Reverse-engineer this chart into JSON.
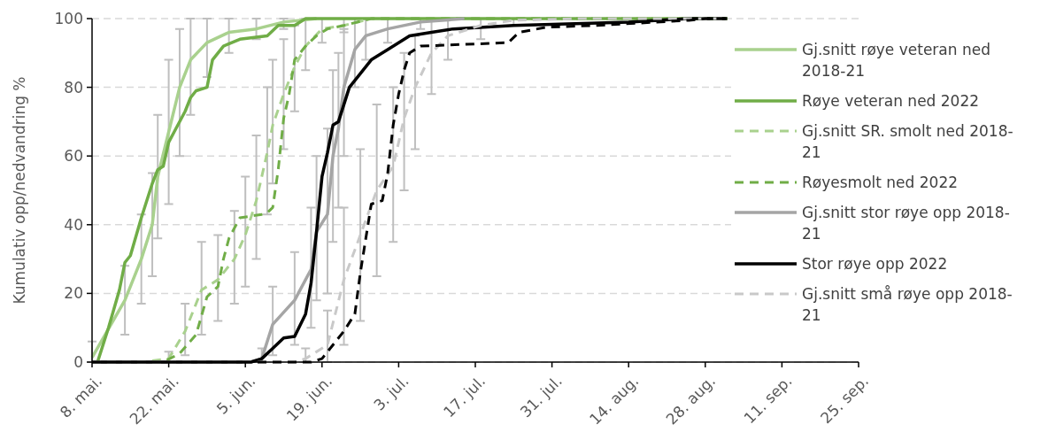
{
  "chart_data": {
    "type": "line",
    "ylabel": "Kumulativ opp/nedvandring %",
    "xlim": [
      "2022-05-08",
      "2022-09-25"
    ],
    "xticks": [
      {
        "value": "2022-05-08",
        "label": "8. mai."
      },
      {
        "value": "2022-05-22",
        "label": "22. mai."
      },
      {
        "value": "2022-06-05",
        "label": "5. jun."
      },
      {
        "value": "2022-06-19",
        "label": "19. jun."
      },
      {
        "value": "2022-07-03",
        "label": "3. jul."
      },
      {
        "value": "2022-07-17",
        "label": "17. jul."
      },
      {
        "value": "2022-07-31",
        "label": "31. jul."
      },
      {
        "value": "2022-08-14",
        "label": "14. aug."
      },
      {
        "value": "2022-08-28",
        "label": "28. aug."
      },
      {
        "value": "2022-09-11",
        "label": "11. sep."
      },
      {
        "value": "2022-09-25",
        "label": "25. sep."
      }
    ],
    "ylim": [
      0,
      100
    ],
    "yticks": [
      0,
      20,
      40,
      60,
      80,
      100
    ],
    "grid": "y",
    "legend": "right",
    "series": [
      {
        "name": "Gj.snitt røye veteran ned 2018-21",
        "color": "#a9d18e",
        "line_style": "solid",
        "x": [
          "2022-05-08",
          "2022-05-14",
          "2022-05-17",
          "2022-05-19",
          "2022-05-20",
          "2022-05-22",
          "2022-05-24",
          "2022-05-26",
          "2022-05-29",
          "2022-06-02",
          "2022-06-07",
          "2022-06-12",
          "2022-06-18"
        ],
        "values": [
          1.3,
          18,
          30,
          40,
          54,
          67,
          80,
          88,
          93,
          96,
          97,
          99,
          100
        ],
        "errors": [
          [
            0,
            6
          ],
          [
            8,
            28
          ],
          [
            17,
            43
          ],
          [
            25,
            55
          ],
          [
            36,
            72
          ],
          [
            46,
            88
          ],
          [
            60,
            97
          ],
          [
            72,
            100
          ],
          [
            83,
            100
          ],
          [
            90,
            100
          ],
          [
            94,
            100
          ],
          [
            97,
            100
          ],
          null
        ]
      },
      {
        "name": "Røye veteran ned 2022",
        "color": "#70ad47",
        "line_style": "solid",
        "x": [
          "2022-05-08",
          "2022-05-09",
          "2022-05-11",
          "2022-05-13",
          "2022-05-14",
          "2022-05-15",
          "2022-05-17",
          "2022-05-19",
          "2022-05-20",
          "2022-05-21",
          "2022-05-22",
          "2022-05-23",
          "2022-05-25",
          "2022-05-26",
          "2022-05-27",
          "2022-05-29",
          "2022-05-30",
          "2022-06-01",
          "2022-06-04",
          "2022-06-09",
          "2022-06-11",
          "2022-06-14",
          "2022-06-16",
          "2022-09-01"
        ],
        "values": [
          0,
          0,
          10,
          21,
          29,
          31,
          42,
          52,
          56,
          57,
          64,
          67,
          73,
          77,
          79,
          80,
          88,
          92,
          94,
          95,
          98,
          98,
          100,
          100
        ]
      },
      {
        "name": "Gj.snitt SR. smolt ned 2018-21",
        "color": "#a9d18e",
        "line_style": "dashed",
        "x": [
          "2022-05-08",
          "2022-05-17",
          "2022-05-22",
          "2022-05-25",
          "2022-05-28",
          "2022-05-31",
          "2022-06-03",
          "2022-06-05",
          "2022-06-07",
          "2022-06-09",
          "2022-06-10",
          "2022-06-12",
          "2022-06-14",
          "2022-06-16",
          "2022-06-19",
          "2022-06-23",
          "2022-06-28"
        ],
        "values": [
          0,
          0,
          1,
          9,
          21,
          24,
          30,
          37,
          47,
          61,
          69,
          78,
          86,
          92,
          97,
          98,
          100
        ],
        "errors": [
          null,
          null,
          [
            0,
            3
          ],
          [
            2,
            17
          ],
          [
            8,
            35
          ],
          [
            12,
            37
          ],
          [
            17,
            44
          ],
          [
            22,
            54
          ],
          [
            30,
            66
          ],
          [
            43,
            80
          ],
          [
            52,
            88
          ],
          [
            62,
            94
          ],
          [
            73,
            98
          ],
          [
            85,
            100
          ],
          [
            93,
            100
          ],
          [
            96,
            100
          ],
          null
        ]
      },
      {
        "name": "Røyesmolt ned 2022",
        "color": "#70ad47",
        "line_style": "dashed",
        "x": [
          "2022-05-08",
          "2022-05-21",
          "2022-05-24",
          "2022-05-27",
          "2022-05-29",
          "2022-05-31",
          "2022-06-01",
          "2022-06-02",
          "2022-06-04",
          "2022-06-08",
          "2022-06-09",
          "2022-06-10",
          "2022-06-11",
          "2022-06-12",
          "2022-06-13",
          "2022-06-14",
          "2022-06-16",
          "2022-06-18",
          "2022-06-20",
          "2022-06-23",
          "2022-06-28",
          "2022-09-01"
        ],
        "values": [
          0,
          0,
          2.5,
          8,
          19,
          22,
          30,
          36,
          42,
          43,
          43.5,
          45,
          56,
          71,
          78,
          88,
          92,
          95,
          97,
          98,
          100,
          100
        ]
      },
      {
        "name": "Gj.snitt stor røye opp 2018-21",
        "color": "#a5a5a5",
        "line_style": "solid",
        "x": [
          "2022-05-08",
          "2022-06-06",
          "2022-06-08",
          "2022-06-10",
          "2022-06-14",
          "2022-06-17",
          "2022-06-18",
          "2022-06-20",
          "2022-06-21",
          "2022-06-22",
          "2022-06-23",
          "2022-06-25",
          "2022-06-27",
          "2022-07-01",
          "2022-07-07",
          "2022-07-15"
        ],
        "values": [
          0,
          0,
          1,
          11,
          18,
          27,
          38,
          43,
          60,
          68,
          80,
          91,
          95,
          97,
          99,
          100
        ],
        "errors": [
          null,
          null,
          [
            0,
            4
          ],
          [
            2,
            22
          ],
          [
            5,
            32
          ],
          [
            10,
            45
          ],
          [
            18,
            60
          ],
          [
            20,
            68
          ],
          [
            35,
            85
          ],
          [
            45,
            90
          ],
          [
            60,
            97
          ],
          [
            80,
            100
          ],
          [
            88,
            100
          ],
          [
            93,
            100
          ],
          [
            97,
            100
          ],
          null
        ]
      },
      {
        "name": "Stor røye opp 2022",
        "color": "#000000",
        "line_style": "solid",
        "x": [
          "2022-05-08",
          "2022-06-06",
          "2022-06-08",
          "2022-06-10",
          "2022-06-12",
          "2022-06-14",
          "2022-06-16",
          "2022-06-17",
          "2022-06-18",
          "2022-06-19",
          "2022-06-20",
          "2022-06-21",
          "2022-06-22",
          "2022-06-24",
          "2022-06-26",
          "2022-06-28",
          "2022-07-01",
          "2022-07-03",
          "2022-07-05",
          "2022-07-09",
          "2022-07-13",
          "2022-07-24",
          "2022-08-14",
          "2022-08-25",
          "2022-09-01"
        ],
        "values": [
          0,
          0,
          1,
          4,
          7,
          7.5,
          14,
          23,
          38,
          54,
          61,
          69,
          70,
          80,
          84,
          88,
          91,
          93,
          95,
          96,
          97,
          98,
          99,
          100,
          100
        ]
      },
      {
        "name": "Gj.snitt små røye opp 2018-21",
        "color": "#c9c9c9",
        "line_style": "dashed",
        "x": [
          "2022-05-08",
          "2022-06-14",
          "2022-06-16",
          "2022-06-20",
          "2022-06-23",
          "2022-06-26",
          "2022-06-29",
          "2022-07-02",
          "2022-07-04",
          "2022-07-06",
          "2022-07-09",
          "2022-07-12",
          "2022-07-18",
          "2022-07-24",
          "2022-08-05",
          "2022-09-01"
        ],
        "values": [
          0,
          0,
          1,
          5,
          24,
          37,
          50,
          57,
          71,
          80,
          90,
          95,
          98,
          99.5,
          100,
          100
        ],
        "errors": [
          null,
          null,
          [
            0,
            4
          ],
          [
            0,
            15
          ],
          [
            5,
            45
          ],
          [
            12,
            62
          ],
          [
            25,
            75
          ],
          [
            35,
            80
          ],
          [
            50,
            90
          ],
          [
            62,
            95
          ],
          [
            78,
            100
          ],
          [
            88,
            100
          ],
          [
            94,
            100
          ],
          [
            98,
            100
          ],
          null,
          null
        ]
      },
      {
        "color": "#000000",
        "line_style": "dashed",
        "x": [
          "2022-05-08",
          "2022-06-17",
          "2022-06-19",
          "2022-06-20",
          "2022-06-23",
          "2022-06-25",
          "2022-06-26",
          "2022-06-27",
          "2022-06-28",
          "2022-06-30",
          "2022-07-01",
          "2022-07-02",
          "2022-07-03",
          "2022-07-04",
          "2022-07-05",
          "2022-07-07",
          "2022-07-23",
          "2022-07-25",
          "2022-07-30",
          "2022-08-08",
          "2022-08-25",
          "2022-08-28",
          "2022-09-01"
        ],
        "values": [
          0,
          0,
          1,
          3,
          9,
          14,
          26,
          36,
          46,
          47,
          55,
          69,
          78,
          85,
          90,
          92,
          93,
          96,
          97.5,
          98,
          99.5,
          100,
          100
        ]
      }
    ]
  }
}
